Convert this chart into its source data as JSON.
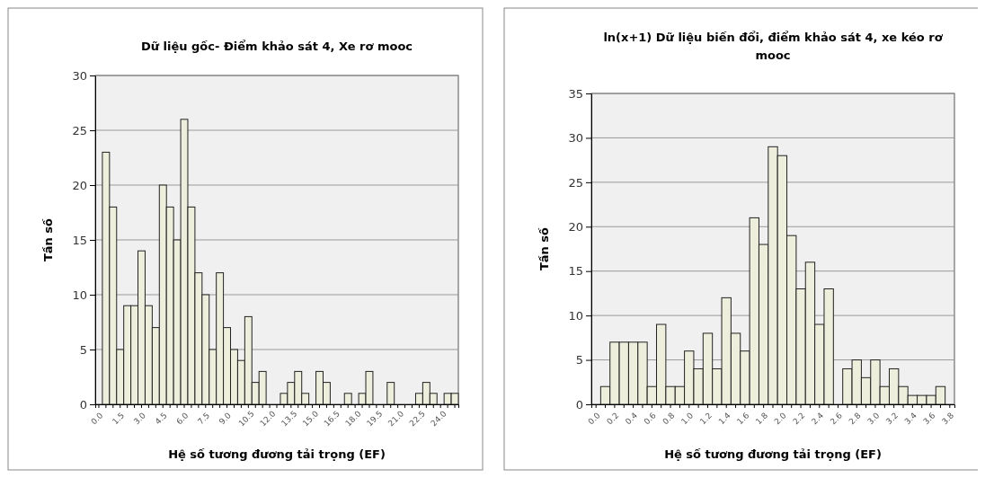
{
  "chart_data": [
    {
      "type": "bar",
      "title": "Dữ liệu gốc- Điểm khảo sát 4, Xe rơ mooc",
      "xlabel": "Hệ số tương đương tải trọng (EF)",
      "ylabel": "Tần số",
      "categories": [
        "0.0",
        null,
        null,
        "1.5",
        null,
        null,
        "3.0",
        null,
        null,
        "4.5",
        null,
        null,
        "6.0",
        null,
        null,
        "7.5",
        null,
        null,
        "9.0",
        null,
        null,
        "10.5",
        null,
        null,
        "12.0",
        null,
        null,
        "13.5",
        null,
        null,
        "15.0",
        null,
        null,
        "16.5",
        null,
        null,
        "18.0",
        null,
        null,
        "19.5",
        null,
        null,
        "21.0",
        null,
        null,
        "22.5",
        null,
        null,
        "24.0",
        null,
        null
      ],
      "values": [
        0,
        23,
        18,
        5,
        9,
        9,
        14,
        9,
        7,
        20,
        18,
        15,
        26,
        18,
        12,
        10,
        5,
        12,
        7,
        5,
        4,
        8,
        2,
        3,
        0,
        0,
        1,
        2,
        3,
        1,
        0,
        3,
        2,
        0,
        0,
        1,
        0,
        1,
        3,
        0,
        0,
        2,
        0,
        0,
        0,
        1,
        2,
        1,
        0,
        1,
        1
      ],
      "color": "#eeeedd",
      "ylim": [
        0,
        30
      ],
      "yticks": [
        0,
        5,
        10,
        15,
        20,
        25,
        30
      ],
      "grid": "y"
    },
    {
      "type": "bar",
      "title": "ln(x+1) Dữ liệu biến đổi, điểm khảo sát 4, xe kéo rơ mooc",
      "xlabel": "Hệ số tương đương tải trọng (EF)",
      "ylabel": "Tần số",
      "categories": [
        "0.0",
        null,
        "0.2",
        null,
        "0.4",
        null,
        "0.6",
        null,
        "0.8",
        null,
        "1.0",
        null,
        "1.2",
        null,
        "1.4",
        null,
        "1.6",
        null,
        "1.8",
        null,
        "2.0",
        null,
        "2.2",
        null,
        "2.4",
        null,
        "2.6",
        null,
        "2.8",
        null,
        "3.0",
        null,
        "3.2",
        null,
        "3.4",
        null,
        "3.6",
        null,
        "3.8"
      ],
      "values": [
        0,
        2,
        7,
        7,
        7,
        7,
        2,
        9,
        2,
        2,
        6,
        4,
        8,
        4,
        12,
        8,
        6,
        21,
        18,
        29,
        28,
        19,
        13,
        16,
        9,
        13,
        0,
        4,
        5,
        3,
        5,
        2,
        4,
        2,
        1,
        1,
        1,
        2,
        0
      ],
      "color": "#eeeedd",
      "ylim": [
        0,
        35
      ],
      "yticks": [
        0,
        5,
        10,
        15,
        20,
        25,
        30,
        35
      ],
      "grid": "y"
    }
  ]
}
